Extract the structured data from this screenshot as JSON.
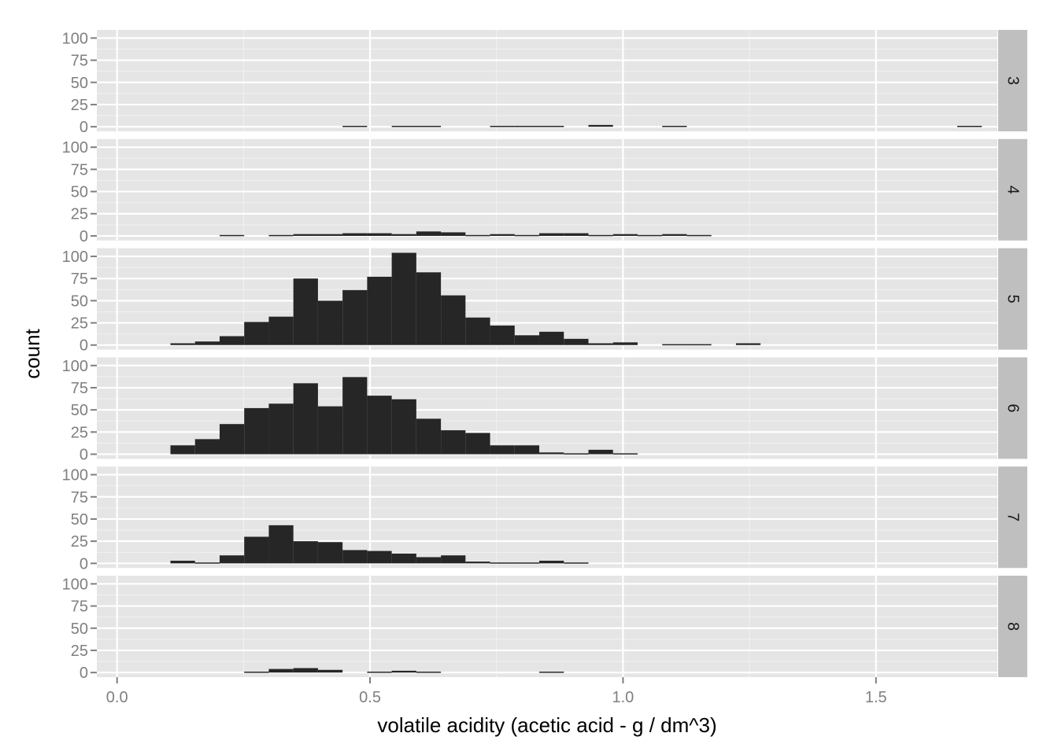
{
  "chart_data": {
    "type": "bar",
    "subtype": "faceted histogram",
    "xlabel": "volatile acidity (acetic acid - g / dm^3)",
    "ylabel": "count",
    "xlim": [
      -0.04,
      1.74
    ],
    "ylim": [
      -5.2,
      109.2
    ],
    "x_ticks": [
      0.0,
      0.5,
      1.0,
      1.5
    ],
    "x_tick_labels": [
      "0.0",
      "0.5",
      "1.0",
      "1.5"
    ],
    "y_ticks": [
      0,
      25,
      50,
      75,
      100
    ],
    "y_tick_labels": [
      "0",
      "25",
      "50",
      "75",
      "100"
    ],
    "bin_width": 0.0486,
    "bin_start": 0.1055,
    "grid": true,
    "panel_background": "#e5e5e5",
    "bar_color": "#262626",
    "strip_background": "#bfbfbf",
    "facets": [
      {
        "label": "3",
        "counts": [
          0,
          0,
          0,
          0,
          0,
          0,
          0,
          1,
          0,
          1,
          1,
          0,
          0,
          1,
          1,
          1,
          0,
          2,
          0,
          0,
          1,
          0,
          0,
          0,
          0,
          0,
          0,
          0,
          0,
          0,
          0,
          0,
          1
        ]
      },
      {
        "label": "4",
        "counts": [
          0,
          0,
          1,
          0,
          1,
          2,
          2,
          3,
          3,
          2,
          5,
          4,
          1,
          2,
          1,
          3,
          3,
          1,
          2,
          1,
          2,
          1,
          0,
          0,
          0,
          0,
          0,
          0,
          0,
          0,
          0,
          0,
          0
        ]
      },
      {
        "label": "5",
        "counts": [
          2,
          4,
          10,
          26,
          32,
          75,
          50,
          62,
          77,
          104,
          82,
          56,
          31,
          22,
          11,
          15,
          7,
          2,
          3,
          0,
          1,
          1,
          0,
          2,
          0,
          0,
          0,
          0,
          0,
          0,
          0,
          0,
          0
        ]
      },
      {
        "label": "6",
        "counts": [
          10,
          17,
          34,
          52,
          57,
          80,
          54,
          87,
          66,
          62,
          40,
          27,
          24,
          10,
          10,
          2,
          1,
          5,
          1,
          0,
          0,
          0,
          0,
          0,
          0,
          0,
          0,
          0,
          0,
          0,
          0,
          0,
          0
        ]
      },
      {
        "label": "7",
        "counts": [
          3,
          1,
          9,
          30,
          43,
          25,
          24,
          15,
          14,
          11,
          7,
          9,
          2,
          1,
          1,
          3,
          1,
          0,
          0,
          0,
          0,
          0,
          0,
          0,
          0,
          0,
          0,
          0,
          0,
          0,
          0,
          0,
          0
        ]
      },
      {
        "label": "8",
        "counts": [
          0,
          0,
          0,
          1,
          4,
          5,
          3,
          0,
          1,
          2,
          1,
          0,
          0,
          0,
          0,
          1,
          0,
          0,
          0,
          0,
          0,
          0,
          0,
          0,
          0,
          0,
          0,
          0,
          0,
          0,
          0,
          0,
          0
        ]
      }
    ]
  }
}
